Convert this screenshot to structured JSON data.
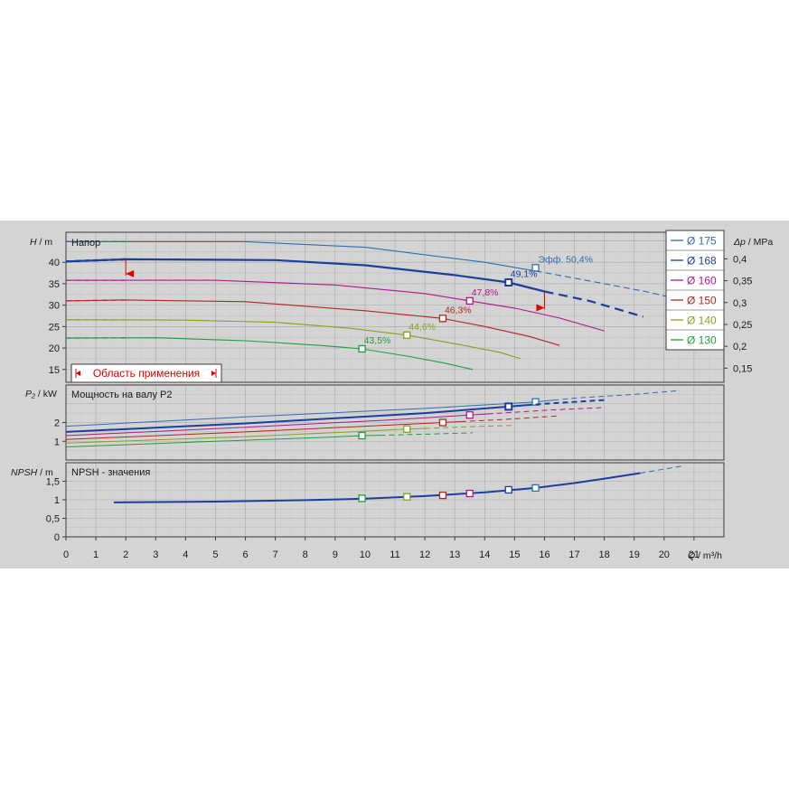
{
  "colors": {
    "panel_bg": "#d4d4d4",
    "grid": "#a8a8a8",
    "border": "#3c3c3c",
    "range_red": "#e00000",
    "text": "#1a1a1a"
  },
  "chart_data": {
    "type": "line",
    "x_axis": {
      "label_var": "Q",
      "label_unit": " / m³/h",
      "range": [
        0,
        22
      ],
      "ticks": [
        "0",
        "1",
        "2",
        "3",
        "4",
        "5",
        "6",
        "7",
        "8",
        "9",
        "10",
        "11",
        "12",
        "13",
        "14",
        "15",
        "16",
        "17",
        "18",
        "19",
        "20",
        "21"
      ]
    },
    "grid": true,
    "legend_position": "top-right",
    "series": [
      {
        "name": "Ø 175",
        "color": "#2f6fb4",
        "eff_label": "Эфф.  50,4%",
        "eff_point": [
          15.7,
          38.7
        ],
        "head": [
          [
            0,
            44.8
          ],
          [
            6,
            44.8
          ],
          [
            10,
            43.5
          ],
          [
            14,
            40.0
          ],
          [
            16,
            37.6
          ],
          [
            18,
            35.0
          ],
          [
            19.5,
            33.0
          ],
          [
            21,
            30.5
          ],
          [
            21.8,
            29.0
          ]
        ],
        "head_solid_to": 15.7,
        "power": [
          [
            0,
            1.8
          ],
          [
            6,
            2.3
          ],
          [
            12,
            2.75
          ],
          [
            15.7,
            3.1
          ],
          [
            17,
            3.3
          ],
          [
            19,
            3.5
          ],
          [
            20.5,
            3.7
          ]
        ],
        "power_point": [
          15.7,
          3.1
        ]
      },
      {
        "name": "Ø 168",
        "color": "#1b3f9e",
        "eff_label": "49,1%",
        "eff_point": [
          14.8,
          35.3
        ],
        "head": [
          [
            0,
            40.2
          ],
          [
            2,
            40.7
          ],
          [
            7,
            40.5
          ],
          [
            10,
            39.3
          ],
          [
            13,
            37.0
          ],
          [
            14.8,
            35.3
          ],
          [
            16,
            33.2
          ],
          [
            17.5,
            31.0
          ],
          [
            19.3,
            27.3
          ]
        ],
        "head_solid_to": 16.0,
        "power": [
          [
            0,
            1.5
          ],
          [
            6,
            1.95
          ],
          [
            12,
            2.5
          ],
          [
            14.8,
            2.85
          ],
          [
            16,
            3.0
          ],
          [
            18,
            3.2
          ]
        ],
        "power_point": [
          14.8,
          2.85
        ]
      },
      {
        "name": "Ø 160",
        "color": "#b0178f",
        "eff_label": "47,8%",
        "eff_point": [
          13.5,
          31.0
        ],
        "head": [
          [
            0,
            35.8
          ],
          [
            5,
            35.8
          ],
          [
            9,
            34.7
          ],
          [
            12,
            32.7
          ],
          [
            13.5,
            31.0
          ],
          [
            15,
            29.3
          ],
          [
            16.5,
            27.0
          ],
          [
            18,
            24.0
          ]
        ],
        "head_solid_to": 18.0,
        "power": [
          [
            0,
            1.3
          ],
          [
            6,
            1.75
          ],
          [
            11,
            2.15
          ],
          [
            13.5,
            2.4
          ],
          [
            16,
            2.65
          ],
          [
            18,
            2.8
          ]
        ],
        "power_point": [
          13.5,
          2.4
        ]
      },
      {
        "name": "Ø 150",
        "color": "#b0281e",
        "eff_label": "46,3%",
        "eff_point": [
          12.6,
          26.9
        ],
        "head": [
          [
            0,
            31.0
          ],
          [
            2,
            31.2
          ],
          [
            6,
            30.8
          ],
          [
            10,
            28.7
          ],
          [
            12.6,
            26.9
          ],
          [
            14,
            25.0
          ],
          [
            15.5,
            22.7
          ],
          [
            16.5,
            20.6
          ]
        ],
        "head_solid_to": 16.5,
        "power": [
          [
            0,
            1.1
          ],
          [
            6,
            1.5
          ],
          [
            10,
            1.8
          ],
          [
            12.6,
            2.0
          ],
          [
            14.5,
            2.15
          ],
          [
            16.5,
            2.35
          ]
        ],
        "power_point": [
          12.6,
          2.0
        ]
      },
      {
        "name": "Ø 140",
        "color": "#8f9e1e",
        "eff_label": "44,6%",
        "eff_point": [
          11.4,
          23.0
        ],
        "head": [
          [
            0,
            26.6
          ],
          [
            4,
            26.5
          ],
          [
            7,
            26.0
          ],
          [
            9.5,
            24.6
          ],
          [
            11.4,
            23.0
          ],
          [
            13,
            21.0
          ],
          [
            14.5,
            19.0
          ],
          [
            15.2,
            17.5
          ]
        ],
        "head_solid_to": 15.2,
        "power": [
          [
            0,
            0.9
          ],
          [
            6,
            1.25
          ],
          [
            9.5,
            1.5
          ],
          [
            11.4,
            1.65
          ],
          [
            13.5,
            1.78
          ],
          [
            15,
            1.85
          ]
        ],
        "power_point": [
          11.4,
          1.65
        ]
      },
      {
        "name": "Ø 130",
        "color": "#1e9e3c",
        "eff_label": "43,5%",
        "eff_point": [
          9.9,
          19.8
        ],
        "head": [
          [
            0,
            22.3
          ],
          [
            3,
            22.4
          ],
          [
            6,
            21.7
          ],
          [
            8.5,
            20.6
          ],
          [
            9.9,
            19.8
          ],
          [
            11.5,
            18.0
          ],
          [
            12.7,
            16.4
          ],
          [
            13.6,
            15.0
          ]
        ],
        "head_solid_to": 13.6,
        "power": [
          [
            0,
            0.7
          ],
          [
            5,
            1.0
          ],
          [
            8.5,
            1.2
          ],
          [
            9.9,
            1.3
          ],
          [
            12,
            1.38
          ],
          [
            13.6,
            1.45
          ]
        ],
        "power_point": [
          9.9,
          1.3
        ]
      }
    ],
    "panel_head": {
      "title": "Напор",
      "y_var": "H",
      "y_unit": " / m",
      "y_range": [
        12,
        47
      ],
      "y_ticks": [
        "15",
        "20",
        "25",
        "30",
        "35",
        "40"
      ],
      "right_axis_var": "Δp",
      "right_axis_unit": " / MPa",
      "right_ticks": [
        "0,15",
        "0,2",
        "0,25",
        "0,3",
        "0,35",
        "0,4"
      ],
      "range_label": "Область применения",
      "range_left_q": 2.0,
      "range_right_q": 16.0
    },
    "panel_power": {
      "title": "Мощность на валу P2",
      "y_var": "P₂",
      "y_unit": " / kW",
      "y_range": [
        0,
        4
      ],
      "y_ticks": [
        "1",
        "2"
      ]
    },
    "panel_npsh": {
      "title": "NPSH - значения",
      "y_var": "NPSH",
      "y_unit": " / m",
      "y_range": [
        0,
        2
      ],
      "y_ticks": [
        "0",
        "0,5",
        "1",
        "1,5"
      ],
      "curve": [
        [
          1.6,
          0.93
        ],
        [
          5,
          0.95
        ],
        [
          8,
          0.99
        ],
        [
          10,
          1.03
        ],
        [
          12,
          1.1
        ],
        [
          14,
          1.2
        ],
        [
          15.7,
          1.32
        ],
        [
          17,
          1.45
        ],
        [
          18,
          1.57
        ],
        [
          19.2,
          1.72
        ],
        [
          20.6,
          1.91
        ]
      ],
      "solid_to": 19.2,
      "points": [
        {
          "q": 9.9,
          "v": 1.04,
          "color": "#1e9e3c"
        },
        {
          "q": 11.4,
          "v": 1.08,
          "color": "#8f9e1e"
        },
        {
          "q": 12.6,
          "v": 1.12,
          "color": "#b0281e"
        },
        {
          "q": 13.5,
          "v": 1.17,
          "color": "#b0178f"
        },
        {
          "q": 14.8,
          "v": 1.27,
          "color": "#1b3f9e"
        },
        {
          "q": 15.7,
          "v": 1.32,
          "color": "#2f6fb4"
        }
      ]
    }
  }
}
